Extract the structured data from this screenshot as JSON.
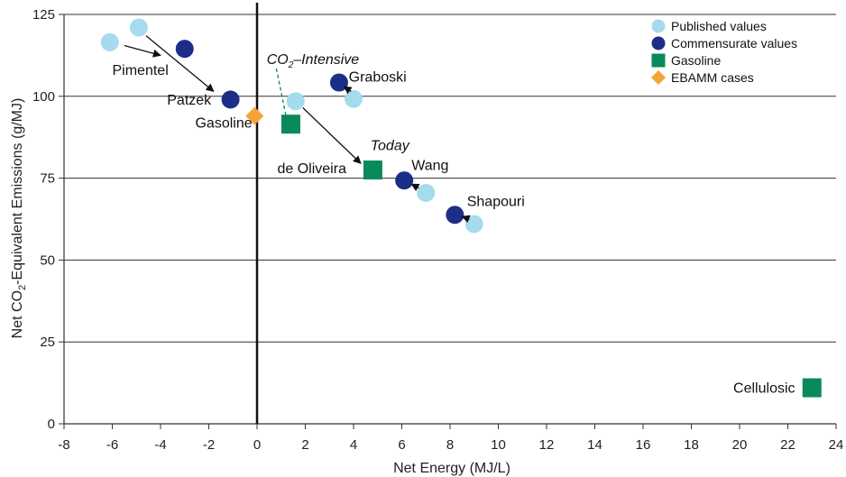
{
  "chart_data": {
    "type": "scatter",
    "title": "",
    "xlabel": "Net Energy (MJ/L)",
    "ylabel": {
      "pre": "Net CO",
      "sub": "2",
      "post": "-Equivalent Emissions (g/MJ)"
    },
    "xlim": [
      -8,
      24
    ],
    "ylim": [
      0,
      125
    ],
    "xticks": [
      -8,
      -6,
      -4,
      -2,
      0,
      2,
      4,
      6,
      8,
      10,
      12,
      14,
      16,
      18,
      20,
      22,
      24
    ],
    "yticks": [
      0,
      25,
      50,
      75,
      100,
      125
    ],
    "grid": "horizontal",
    "legend_position": "top-right",
    "colors": {
      "published": "#a6dbee",
      "commensurate": "#1d2e88",
      "gasoline": "#0a8a5a",
      "ebamm": "#f5a43a"
    },
    "series": [
      {
        "name": "Published values",
        "marker": "circle",
        "color": "#a6dbee",
        "points": [
          {
            "x": -6.1,
            "y": 116.5
          },
          {
            "x": -4.9,
            "y": 121
          },
          {
            "x": 1.6,
            "y": 98.5
          },
          {
            "x": 4.0,
            "y": 99.2
          },
          {
            "x": 7.0,
            "y": 70.5
          },
          {
            "x": 9.0,
            "y": 61
          }
        ]
      },
      {
        "name": "Commensurate values",
        "marker": "circle",
        "color": "#1d2e88",
        "points": [
          {
            "x": -3.0,
            "y": 114.5
          },
          {
            "x": -1.1,
            "y": 99
          },
          {
            "x": 3.4,
            "y": 104.2
          },
          {
            "x": 6.1,
            "y": 74.3
          },
          {
            "x": 8.2,
            "y": 63.8
          }
        ]
      },
      {
        "name": "Gasoline",
        "marker": "square",
        "color": "#0a8a5a",
        "points": [
          {
            "x": 1.4,
            "y": 91.5
          },
          {
            "x": 4.8,
            "y": 77.5
          },
          {
            "x": 23.0,
            "y": 11
          }
        ]
      },
      {
        "name": "EBAMM cases",
        "marker": "diamond",
        "color": "#f5a43a",
        "points": [
          {
            "x": -0.1,
            "y": 94
          }
        ]
      }
    ],
    "labels": [
      {
        "text": "Pimentel",
        "x": -6.0,
        "y": 106.5,
        "anchor": "start",
        "italic": false
      },
      {
        "text": "Patzek",
        "x": -1.9,
        "y": 97.5,
        "anchor": "end",
        "italic": false
      },
      {
        "text": "Gasoline",
        "x": -0.2,
        "y": 90.5,
        "anchor": "end",
        "italic": false
      },
      {
        "text": "Graboski",
        "x": 3.8,
        "y": 104.5,
        "anchor": "start",
        "italic": false
      },
      {
        "text": "de Oliveira",
        "x": 3.7,
        "y": 76.5,
        "anchor": "end",
        "italic": false
      },
      {
        "text": "Today",
        "x": 4.7,
        "y": 83.5,
        "anchor": "start",
        "italic": true
      },
      {
        "text": "Wang",
        "x": 6.4,
        "y": 77.5,
        "anchor": "start",
        "italic": false
      },
      {
        "text": "Shapouri",
        "x": 8.7,
        "y": 66.5,
        "anchor": "start",
        "italic": false
      },
      {
        "text": "Cellulosic",
        "x": 22.3,
        "y": 9.5,
        "anchor": "end",
        "italic": false
      }
    ],
    "co2_label": {
      "pre": "CO",
      "sub": "2",
      "post": "–Intensive",
      "x": 0.4,
      "y": 109.8
    },
    "arrows": [
      {
        "from": [
          -5.5,
          115.5
        ],
        "to": [
          -4.0,
          112.5
        ]
      },
      {
        "from": [
          -4.6,
          118.5
        ],
        "to": [
          -1.8,
          101.5
        ]
      },
      {
        "from": [
          1.9,
          96.5
        ],
        "to": [
          4.3,
          79.5
        ]
      },
      {
        "from": [
          3.9,
          101.5
        ],
        "to": [
          3.6,
          103.0
        ]
      },
      {
        "from": [
          6.7,
          72.0
        ],
        "to": [
          6.4,
          73.2
        ]
      },
      {
        "from": [
          8.8,
          62.5
        ],
        "to": [
          8.5,
          63.3
        ]
      }
    ],
    "dashed_lines": [
      {
        "from": [
          0.8,
          108.5
        ],
        "to": [
          1.2,
          94.0
        ]
      }
    ]
  }
}
